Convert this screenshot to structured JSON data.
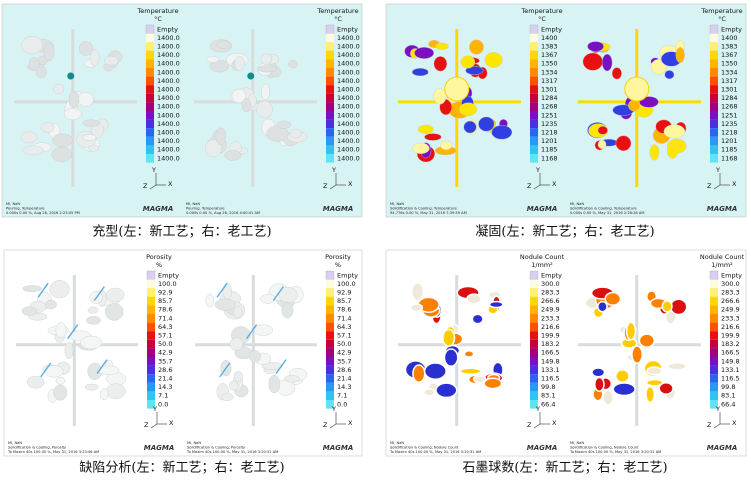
{
  "panels": [
    {
      "caption": "充型(左：新工艺；右：老工艺)",
      "views": [
        {
          "legend": {
            "title": "Temperature",
            "unit": "°C",
            "empty": "Empty",
            "labels": [
              "1400.0",
              "1400.0",
              "1400.0",
              "1400.0",
              "1400.0",
              "1400.0",
              "1400.0",
              "1400.0",
              "1400.0",
              "1400.0",
              "1400.0",
              "1400.0",
              "1400.0",
              "1400.0",
              "1400.0"
            ]
          },
          "info": [
            "MI, NaN",
            "Pouring, Temperature",
            "0.000s 0.00 %, Aug 26, 2016 2:23:05 PM"
          ],
          "logo": "MAGMA"
        },
        {
          "legend": {
            "title": "Temperature",
            "unit": "°C",
            "empty": "Empty",
            "labels": [
              "1400.0",
              "1400.0",
              "1400.0",
              "1400.0",
              "1400.0",
              "1400.0",
              "1400.0",
              "1400.0",
              "1400.0",
              "1400.0",
              "1400.0",
              "1400.0",
              "1400.0",
              "1400.0",
              "1400.0"
            ]
          },
          "info": [
            "MI, NaN",
            "Pouring, Temperature",
            "0.000s 0.00 %, Aug 26, 2016 4:00:41 AM"
          ],
          "logo": "MAGMA"
        }
      ],
      "axes": [
        "Y",
        "Z",
        "X"
      ]
    },
    {
      "caption": "凝固(左：新工艺；右：老工艺)",
      "views": [
        {
          "legend": {
            "title": "Temperature",
            "unit": "°C",
            "empty": "Empty",
            "labels": [
              "1400",
              "1383",
              "1367",
              "1350",
              "1334",
              "1317",
              "1301",
              "1284",
              "1268",
              "1251",
              "1235",
              "1218",
              "1201",
              "1185",
              "1168"
            ]
          },
          "info": [
            "MI, NaN",
            "Solidification & Cooling, Temperature",
            "94.776s 0.00 %, May 31, 2016 7:39:59 AM"
          ],
          "logo": "MAGMA"
        },
        {
          "legend": {
            "title": "Temperature",
            "unit": "°C",
            "empty": "Empty",
            "labels": [
              "1400",
              "1383",
              "1367",
              "1350",
              "1334",
              "1317",
              "1301",
              "1284",
              "1268",
              "1251",
              "1235",
              "1218",
              "1201",
              "1185",
              "1168"
            ]
          },
          "info": [
            "MI, NaN",
            "Solidification & Cooling, Temperature",
            "0.000s 0.00 %, May 31, 2016 2:28:28 AM"
          ],
          "logo": "MAGMA"
        }
      ],
      "axes": [
        "Y",
        "Z",
        "X"
      ]
    },
    {
      "caption": "缺陷分析(左：新工艺；右：老工艺)",
      "views": [
        {
          "legend": {
            "title": "Porosity",
            "unit": "%",
            "empty": "Empty",
            "labels": [
              "100.0",
              "92.9",
              "85.7",
              "78.6",
              "71.4",
              "64.3",
              "57.1",
              "50.0",
              "42.9",
              "35.7",
              "28.6",
              "21.4",
              "14.3",
              "7.1",
              "0.0"
            ]
          },
          "info": [
            "MI, NaN",
            "Solidification & Cooling, Porosity",
            "To Maxim 40s 100.00 %, May 31, 2016 3:23:46 AM"
          ],
          "logo": "MAGMA"
        },
        {
          "legend": {
            "title": "Porosity",
            "unit": "%",
            "empty": "Empty",
            "labels": [
              "100.0",
              "92.9",
              "85.7",
              "78.6",
              "71.4",
              "64.3",
              "57.1",
              "50.0",
              "42.9",
              "35.7",
              "28.6",
              "21.4",
              "14.3",
              "7.1",
              "0.0"
            ]
          },
          "info": [
            "MI, NaN",
            "Solidification & Cooling, Porosity",
            "To Maxim 40s 100.00 %, May 31, 2016 3:20:31 AM"
          ],
          "logo": "MAGMA"
        }
      ],
      "axes": [
        "Y",
        "Z",
        "X"
      ]
    },
    {
      "caption": "石墨球数(左：新工艺；右：老工艺)",
      "views": [
        {
          "legend": {
            "title": "Nodule Count",
            "unit": "1/mm²",
            "empty": "Empty",
            "labels": [
              "300.0",
              "283.3",
              "266.6",
              "249.9",
              "233.3",
              "216.6",
              "199.9",
              "183.2",
              "166.5",
              "149.8",
              "133.1",
              "116.5",
              "99.8",
              "83.1",
              "66.4"
            ]
          },
          "info": [
            "MI, NaN",
            "Solidification & Cooling, Nodule Count",
            "To Maxim 40s 100.00 %, May 31, 2016 3:20:31 AM"
          ],
          "logo": "MAGMA"
        },
        {
          "legend": {
            "title": "Nodule Count",
            "unit": "1/mm²",
            "empty": "Empty",
            "labels": [
              "300.0",
              "283.3",
              "266.6",
              "249.9",
              "233.3",
              "216.6",
              "199.9",
              "183.2",
              "166.5",
              "149.8",
              "133.1",
              "116.5",
              "99.8",
              "83.1",
              "66.4"
            ]
          },
          "info": [
            "MI, NaN",
            "Solidification & Cooling, Nodule Count",
            "To Maxim 40s 100.00 %, May 31, 2016 3:20:31 AM"
          ],
          "logo": "MAGMA"
        }
      ],
      "axes": [
        "Y",
        "Z",
        "X"
      ]
    }
  ]
}
